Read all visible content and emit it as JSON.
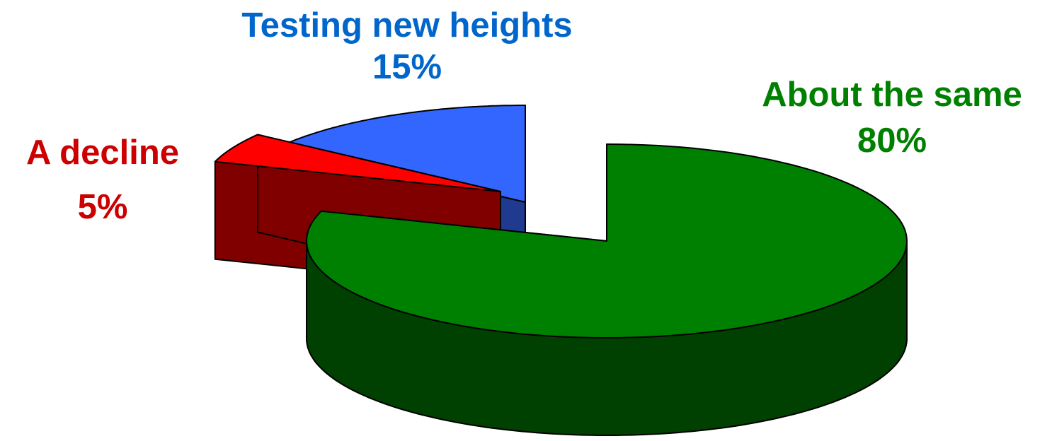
{
  "chart_data": {
    "type": "pie",
    "title": "",
    "slices": [
      {
        "label": "About the same",
        "value": 80,
        "value_label": "80%",
        "color": "#008000",
        "side_color": "#004000"
      },
      {
        "label": "A decline",
        "value": 5,
        "value_label": "5%",
        "color": "#ff0000",
        "side_color": "#800000"
      },
      {
        "label": "Testing new heights",
        "value": 15,
        "value_label": "15%",
        "color": "#3366ff",
        "side_color": "#1f3a8f"
      }
    ],
    "label_colors": {
      "About the same": "#008000",
      "A decline": "#cc0000",
      "Testing new heights": "#0066cc"
    },
    "style": "3d-exploded",
    "legend": "none"
  }
}
